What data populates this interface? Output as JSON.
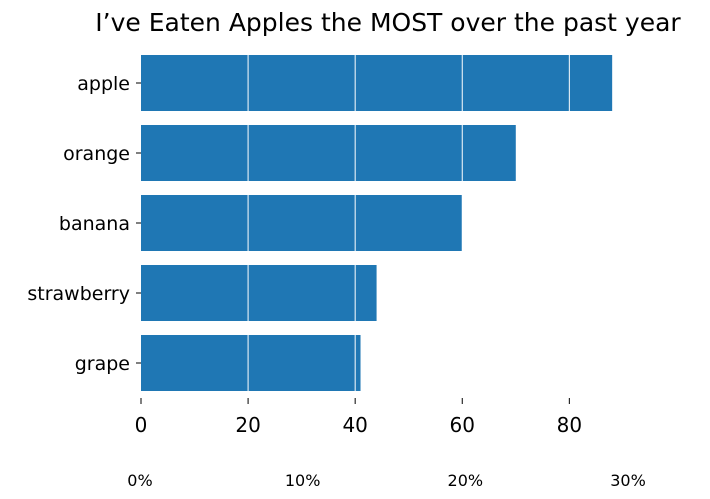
{
  "chart_data": {
    "type": "bar",
    "orientation": "horizontal",
    "title": "I’ve Eaten Apples the MOST over the past year",
    "xlabel": "",
    "ylabel": "",
    "categories": [
      "apple",
      "orange",
      "banana",
      "strawberry",
      "grape"
    ],
    "values": [
      88,
      70,
      60,
      44,
      41
    ],
    "xlim": [
      0,
      96
    ],
    "x_ticks": [
      0,
      20,
      40,
      60,
      80
    ],
    "secondary_axis": {
      "tick_labels": [
        "0%",
        "10%",
        "20%",
        "30%"
      ]
    },
    "grid": "vertical, white, drawn over bars",
    "colors": {
      "bar": "#1f77b4",
      "grid": "#ffffff",
      "text": "#000000"
    }
  }
}
